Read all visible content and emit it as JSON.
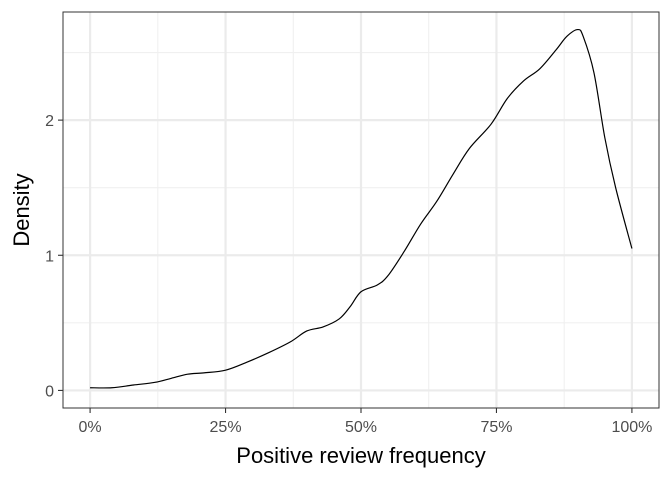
{
  "chart_data": {
    "type": "line",
    "subtype": "density",
    "title": "",
    "xlabel": "Positive review frequency",
    "ylabel": "Density",
    "xlim": [
      -0.05,
      1.05
    ],
    "ylim": [
      -0.13,
      2.8
    ],
    "x_ticks": [
      0,
      0.25,
      0.5,
      0.75,
      1.0
    ],
    "x_tick_labels": [
      "0%",
      "25%",
      "50%",
      "75%",
      "100%"
    ],
    "y_ticks": [
      0,
      1,
      2
    ],
    "y_tick_labels": [
      "0",
      "1",
      "2"
    ],
    "x_minor_ticks": [
      0.125,
      0.375,
      0.625,
      0.875
    ],
    "y_minor_ticks": [
      0.5,
      1.5,
      2.5
    ],
    "grid": true,
    "legend": "none",
    "series": [
      {
        "color": "#000000",
        "x": [
          0.0,
          0.04,
          0.08,
          0.12,
          0.15,
          0.18,
          0.21,
          0.25,
          0.29,
          0.33,
          0.37,
          0.4,
          0.43,
          0.46,
          0.48,
          0.5,
          0.53,
          0.55,
          0.58,
          0.61,
          0.64,
          0.67,
          0.7,
          0.74,
          0.77,
          0.8,
          0.83,
          0.86,
          0.88,
          0.9,
          0.91,
          0.93,
          0.95,
          0.97,
          1.0
        ],
        "y": [
          0.02,
          0.02,
          0.04,
          0.06,
          0.09,
          0.12,
          0.13,
          0.15,
          0.21,
          0.28,
          0.36,
          0.44,
          0.47,
          0.53,
          0.62,
          0.73,
          0.78,
          0.85,
          1.03,
          1.23,
          1.4,
          1.6,
          1.79,
          1.97,
          2.16,
          2.29,
          2.38,
          2.52,
          2.62,
          2.67,
          2.62,
          2.35,
          1.87,
          1.5,
          1.05
        ]
      }
    ]
  }
}
